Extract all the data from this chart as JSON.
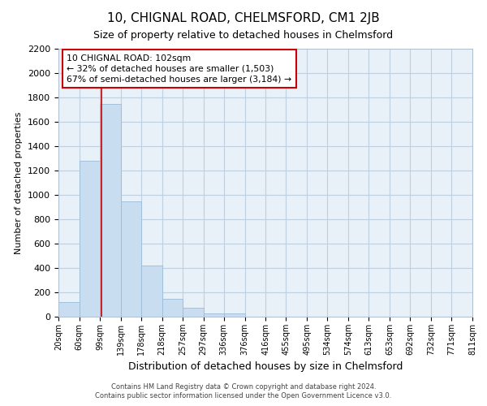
{
  "title": "10, CHIGNAL ROAD, CHELMSFORD, CM1 2JB",
  "subtitle": "Size of property relative to detached houses in Chelmsford",
  "xlabel": "Distribution of detached houses by size in Chelmsford",
  "ylabel": "Number of detached properties",
  "footer_line1": "Contains HM Land Registry data © Crown copyright and database right 2024.",
  "footer_line2": "Contains public sector information licensed under the Open Government Licence v3.0.",
  "bar_edges": [
    20,
    60,
    99,
    139,
    178,
    218,
    257,
    297,
    336,
    376,
    416,
    455,
    495,
    534,
    574,
    613,
    653,
    692,
    732,
    771,
    811
  ],
  "bar_heights": [
    120,
    1280,
    1750,
    950,
    420,
    150,
    75,
    30,
    30,
    0,
    0,
    0,
    0,
    0,
    0,
    0,
    0,
    0,
    0,
    0
  ],
  "bar_color": "#c9ddf0",
  "bar_edge_color": "#9bbcd8",
  "grid_color": "#c0d0e0",
  "bg_color": "#e8f0f8",
  "plot_bg": "#ffffff",
  "vline_x": 102,
  "vline_color": "#cc0000",
  "annotation_line1": "10 CHIGNAL ROAD: 102sqm",
  "annotation_line2": "← 32% of detached houses are smaller (1,503)",
  "annotation_line3": "67% of semi-detached houses are larger (3,184) →",
  "annotation_box_color": "#cc0000",
  "ylim": [
    0,
    2200
  ],
  "yticks": [
    0,
    200,
    400,
    600,
    800,
    1000,
    1200,
    1400,
    1600,
    1800,
    2000,
    2200
  ],
  "tick_labels": [
    "20sqm",
    "60sqm",
    "99sqm",
    "139sqm",
    "178sqm",
    "218sqm",
    "257sqm",
    "297sqm",
    "336sqm",
    "376sqm",
    "416sqm",
    "455sqm",
    "495sqm",
    "534sqm",
    "574sqm",
    "613sqm",
    "653sqm",
    "692sqm",
    "732sqm",
    "771sqm",
    "811sqm"
  ],
  "title_fontsize": 11,
  "subtitle_fontsize": 9,
  "ylabel_fontsize": 8,
  "xlabel_fontsize": 9,
  "ytick_fontsize": 8,
  "xtick_fontsize": 7
}
